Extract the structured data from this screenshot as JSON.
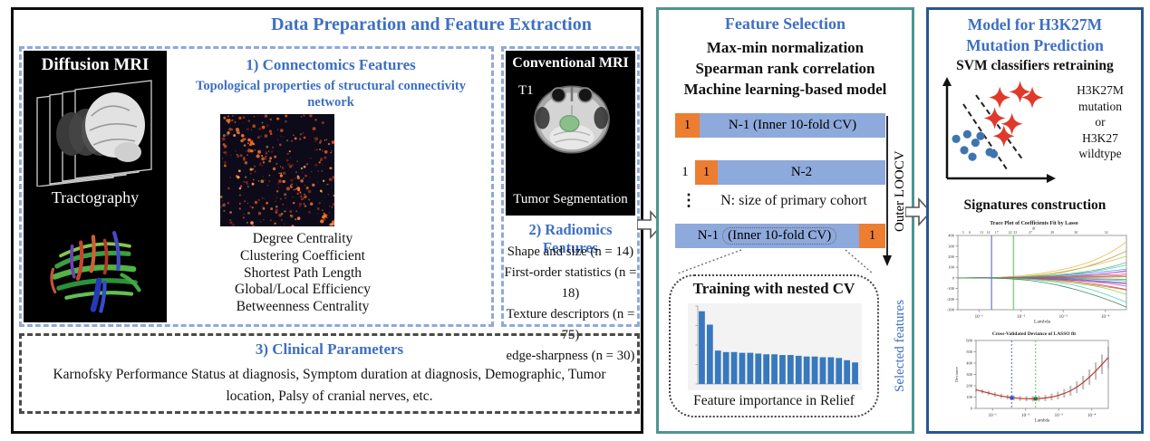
{
  "colors": {
    "accent": "#3E6FC2",
    "dash_blue": "#8FA8DC",
    "teal": "#4F9494",
    "navy": "#2B5592",
    "orange": "#ED7D31",
    "cv_blue": "#8EA9DB",
    "bar_blue": "#3778BE",
    "star_red": "#E0392B",
    "dot_blue": "#3F74AE"
  },
  "left": {
    "title": "Data Preparation and Feature Extraction",
    "diffusion": {
      "title": "Diffusion MRI",
      "caption": "Tractography"
    },
    "connectomics": {
      "heading": "1) Connectomics Features",
      "subheading": "Topological properties of structural connectivity network",
      "features": [
        "Degree Centrality",
        "Clustering Coefficient",
        "Shortest Path Length",
        "Global/Local Efficiency",
        "Betweenness Centrality"
      ]
    },
    "conventional": {
      "title": "Conventional MRI",
      "modality": "T1",
      "caption": "Tumor Segmentation"
    },
    "radiomics": {
      "heading": "2) Radiomics Features",
      "features": [
        "Shape and size (n = 14)",
        "First-order statistics (n = 18)",
        "Texture descriptors (n = 75)",
        "edge-sharpness (n = 30)"
      ]
    },
    "clinical": {
      "heading": "3) Clinical Parameters",
      "text": "Karnofsky Performance Status at diagnosis, Symptom duration at diagnosis, Demographic, Tumor location, Palsy of cranial nerves, etc."
    }
  },
  "mid": {
    "title": "Feature Selection",
    "methods": [
      "Max-min normalization",
      "Spearman rank correlation",
      "Machine learning-based model"
    ],
    "cv": {
      "one": "1",
      "row1_label": "N-1 (Inner 10-fold CV)",
      "row2_label": "N-2",
      "row3_prefix": "N-1",
      "row3_inner": "(Inner 10-fold CV)",
      "dots": "⋮",
      "cohort_note": "N: size of primary cohort",
      "outer_label": "Outer LOOCV"
    },
    "nested": {
      "title": "Training with nested CV",
      "caption": "Feature importance in Relief"
    },
    "selected_label": "Selected features"
  },
  "right": {
    "title_line1": "Model for H3K27M",
    "title_line2": "Mutation Prediction",
    "svm_heading": "SVM classifiers retraining",
    "svm_labels": [
      "H3K27M",
      "mutation",
      "or",
      "H3K27",
      "wildtype"
    ],
    "signatures_heading": "Signatures construction",
    "svm_plot": {
      "dots": [
        [
          9,
          60
        ],
        [
          20,
          55
        ],
        [
          17,
          72
        ],
        [
          28,
          64
        ],
        [
          33,
          57
        ],
        [
          25,
          79
        ],
        [
          42,
          74
        ],
        [
          46,
          76
        ]
      ],
      "stars": [
        [
          52,
          16
        ],
        [
          72,
          10
        ],
        [
          84,
          16
        ],
        [
          47,
          38
        ],
        [
          64,
          44
        ],
        [
          56,
          57
        ]
      ]
    }
  },
  "chart_data": [
    {
      "type": "bar",
      "title": "Feature importance in Relief",
      "values": [
        0.98,
        0.8,
        0.45,
        0.43,
        0.43,
        0.42,
        0.42,
        0.41,
        0.4,
        0.4,
        0.39,
        0.39,
        0.38,
        0.37,
        0.37,
        0.36,
        0.36,
        0.35,
        0.32,
        0.29
      ],
      "ylim": [
        0,
        1.05
      ],
      "bar_color": "#3778BE",
      "plot_bg": "#f3f3f3"
    },
    {
      "type": "line",
      "title": "Trace Plot of Coefficients Fit by Lasso",
      "xlabel": "Lambda",
      "x_ticks": [
        "10⁻¹",
        "10⁻²",
        "10⁻³",
        "10⁻⁴"
      ],
      "y_ticks": [
        400,
        300,
        200,
        100,
        0,
        -100,
        -200,
        -300
      ],
      "ylim": [
        -300,
        400
      ],
      "top_axis_label": "df",
      "df_ticks": [
        "3",
        "6",
        "13",
        "14",
        "17",
        "22",
        "23",
        "27",
        "28",
        "30",
        "32"
      ],
      "vlines": [
        {
          "x": 0.2,
          "color": "#7b86d6"
        },
        {
          "x": 0.33,
          "color": "#7ec87e"
        }
      ],
      "series_end_values": [
        350,
        230,
        220,
        150,
        110,
        90,
        70,
        55,
        40,
        25,
        10,
        -15,
        -30,
        -45,
        -60,
        -80,
        -100,
        -125,
        -160,
        -210,
        -300
      ],
      "series_colors": [
        "#e6b33d",
        "#d98a2b",
        "#b5c93f",
        "#57b36b",
        "#4fc3c7",
        "#3f8fd2",
        "#7a5fd0",
        "#c45fd0",
        "#d64f7e",
        "#d6534f",
        "#8a6b3f",
        "#5f8a3f",
        "#3fa98a",
        "#3f6fd0",
        "#9f3fd0",
        "#d03f9f",
        "#d03f49",
        "#d0763f",
        "#86d03f",
        "#3fd0b0",
        "#2f7f4f"
      ]
    },
    {
      "type": "line",
      "title": "Cross-Validated Deviance of LASSO fit",
      "xlabel": "Lambda",
      "ylabel": "Deviance",
      "x_ticks": [
        "10⁻¹",
        "10⁻²",
        "10⁻³",
        "10⁻⁴"
      ],
      "y_ticks": [
        0,
        100,
        200,
        300,
        400,
        500,
        600
      ],
      "ylim": [
        0,
        600
      ],
      "mean": [
        165,
        150,
        136,
        122,
        110,
        100,
        93,
        88,
        86,
        85,
        87,
        92,
        101,
        114,
        132,
        156,
        188,
        228,
        276,
        330,
        390,
        450
      ],
      "error": [
        18,
        18,
        19,
        20,
        20,
        21,
        22,
        22,
        23,
        24,
        25,
        27,
        30,
        34,
        39,
        45,
        52,
        60,
        68,
        77,
        86,
        95
      ],
      "line_color": "#c0392b",
      "error_color": "#b0b0b0",
      "vlines": [
        {
          "x": 0.27,
          "color": "#6f7fd8",
          "marker": "#3a4fd0"
        },
        {
          "x": 0.45,
          "color": "#7ec87e",
          "marker": "#2f6f2f"
        }
      ]
    }
  ]
}
